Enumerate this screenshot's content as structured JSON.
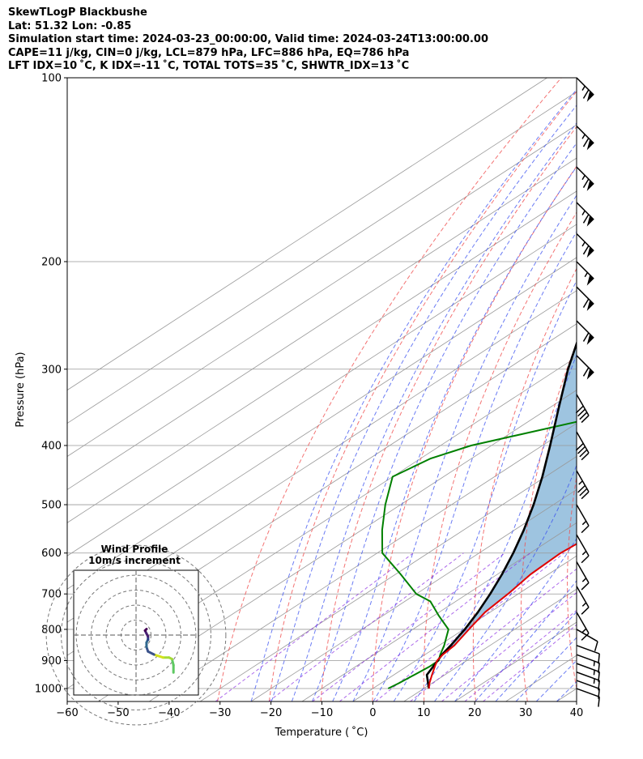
{
  "header": {
    "line1": "SkewTLogP Blackbushe",
    "line2": "Lat: 51.32   Lon: -0.85",
    "line3": "Simulation start time: 2024-03-23_00:00:00, Valid time: 2024-03-24T13:00:00.00",
    "line4": "CAPE=11 j/kg, CIN=0 j/kg, LCL=879 hPa, LFC=886 hPa, EQ=786 hPa",
    "line5": "LFT IDX=10 ˚C, K IDX=-11 ˚C, TOTAL TOTS=35 ˚C, SHWTR_IDX=13 ˚C"
  },
  "chart_data": {
    "type": "line",
    "subtype": "skew-t log-p",
    "xlabel": "Temperature ( ˚C)",
    "ylabel": "Pressure (hPa)",
    "xlim": [
      -60,
      40
    ],
    "ylim": [
      1050,
      100
    ],
    "y_scale": "log",
    "skew_deg_C_per_log": 80,
    "x_ticks": [
      -60,
      -50,
      -40,
      -30,
      -20,
      -10,
      0,
      10,
      20,
      30,
      40
    ],
    "y_ticks": [
      1000,
      900,
      800,
      700,
      600,
      500,
      400,
      300,
      200,
      100
    ],
    "grid": true,
    "colors": {
      "temperature": "#e00000",
      "dewpoint": "#008000",
      "parcel": "#000000",
      "cape_fill": "#9ec4e0",
      "dry_adiabat": "#f05050",
      "moist_adiabat": "#3a50f0",
      "mixing_ratio": "#8a2be2",
      "isotherm": "#999999"
    },
    "series": [
      {
        "role": "temperature",
        "p": [
          1000,
          980,
          950,
          920,
          900,
          880,
          850,
          800,
          750,
          700,
          650,
          600,
          550,
          500,
          450,
          400,
          350,
          300,
          260,
          240,
          220,
          210,
          200,
          180,
          160,
          140,
          120,
          100
        ],
        "t": [
          11,
          9.5,
          7.5,
          5.5,
          4.2,
          3.5,
          3,
          1,
          -1,
          -2,
          -3.5,
          -4,
          -3,
          -1,
          -1,
          -3.5,
          -10,
          -17,
          -21,
          -23.5,
          -25.5,
          -26.5,
          -26,
          -25,
          -25.5,
          -27.5,
          -31,
          -36
        ]
      },
      {
        "role": "dewpoint",
        "p": [
          1000,
          980,
          950,
          920,
          900,
          880,
          850,
          800,
          760,
          720,
          700,
          650,
          600,
          550,
          500,
          450,
          420,
          400,
          360,
          330,
          300,
          270,
          240,
          200,
          180,
          160,
          150,
          140,
          120,
          100
        ],
        "t": [
          3,
          3.5,
          4,
          4.5,
          4.5,
          3,
          1,
          -3,
          -9,
          -15,
          -20,
          -29,
          -39,
          -46,
          -53,
          -60,
          -58,
          -54,
          -38,
          -32,
          -35,
          -39,
          -42,
          -39,
          -37,
          -37,
          -38,
          -41,
          -41,
          -43
        ]
      },
      {
        "role": "parcel",
        "p": [
          1000,
          950,
          900,
          879,
          850,
          800,
          750,
          700,
          650,
          600,
          550,
          500,
          450,
          400,
          350,
          300,
          250,
          200,
          150,
          100
        ],
        "t": [
          11,
          6.5,
          4.3,
          3.3,
          2.3,
          0.2,
          -2.4,
          -5.5,
          -9.1,
          -13.3,
          -18.2,
          -23.9,
          -30.6,
          -38.5,
          -47.6,
          -58,
          -69.4,
          -81.8,
          -95.6,
          -111.8
        ]
      }
    ],
    "wind_barbs": [
      {
        "p": 100,
        "speed_kt": 65,
        "dir_deg": 315
      },
      {
        "p": 120,
        "speed_kt": 65,
        "dir_deg": 315
      },
      {
        "p": 140,
        "speed_kt": 65,
        "dir_deg": 315
      },
      {
        "p": 160,
        "speed_kt": 65,
        "dir_deg": 315
      },
      {
        "p": 180,
        "speed_kt": 65,
        "dir_deg": 315
      },
      {
        "p": 200,
        "speed_kt": 55,
        "dir_deg": 315
      },
      {
        "p": 220,
        "speed_kt": 60,
        "dir_deg": 315
      },
      {
        "p": 250,
        "speed_kt": 60,
        "dir_deg": 315
      },
      {
        "p": 285,
        "speed_kt": 60,
        "dir_deg": 315
      },
      {
        "p": 330,
        "speed_kt": 40,
        "dir_deg": 330
      },
      {
        "p": 380,
        "speed_kt": 40,
        "dir_deg": 330
      },
      {
        "p": 440,
        "speed_kt": 35,
        "dir_deg": 330
      },
      {
        "p": 500,
        "speed_kt": 15,
        "dir_deg": 330
      },
      {
        "p": 560,
        "speed_kt": 15,
        "dir_deg": 330
      },
      {
        "p": 620,
        "speed_kt": 15,
        "dir_deg": 330
      },
      {
        "p": 680,
        "speed_kt": 15,
        "dir_deg": 330
      },
      {
        "p": 750,
        "speed_kt": 15,
        "dir_deg": 330
      },
      {
        "p": 800,
        "speed_kt": 10,
        "dir_deg": 300
      },
      {
        "p": 850,
        "speed_kt": 10,
        "dir_deg": 290
      },
      {
        "p": 880,
        "speed_kt": 15,
        "dir_deg": 290
      },
      {
        "p": 910,
        "speed_kt": 15,
        "dir_deg": 290
      },
      {
        "p": 940,
        "speed_kt": 15,
        "dir_deg": 290
      },
      {
        "p": 970,
        "speed_kt": 10,
        "dir_deg": 290
      },
      {
        "p": 1000,
        "speed_kt": 10,
        "dir_deg": 290
      }
    ],
    "hodograph": {
      "title": "Wind Profile",
      "subtitle": "10m/s increment",
      "ring_step_ms": 10,
      "range_ms": 50,
      "u": [
        25,
        25,
        24,
        22,
        18,
        12,
        8,
        7,
        7,
        8,
        8,
        7,
        6,
        7
      ],
      "v": [
        -25,
        -20,
        -16,
        -15,
        -15,
        -13,
        -11,
        -8,
        -5,
        -3,
        -1,
        1,
        3,
        4
      ],
      "colors": [
        "#5ec962",
        "#a5db36",
        "#d4e21a",
        "#3b528b",
        "#31688e",
        "#2c3e87",
        "#482173",
        "#440154"
      ]
    }
  }
}
